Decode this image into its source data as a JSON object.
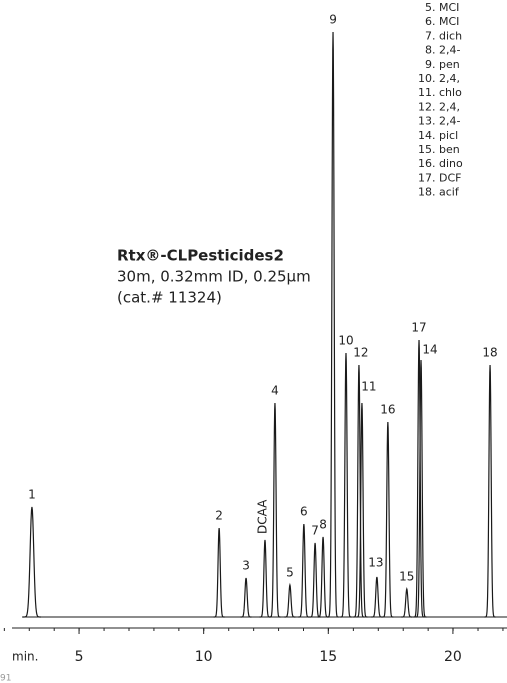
{
  "chart_data": {
    "type": "chromatogram",
    "x_label": "min.",
    "xlim": [
      2.31,
      22.17
    ],
    "xticks": [
      5,
      10,
      15,
      20
    ],
    "ylim": [
      0,
      600
    ],
    "color": "#1a1a1a",
    "categories": [
      "1",
      "2",
      "3",
      "DCAA",
      "4",
      "5",
      "6",
      "7",
      "8",
      "9",
      "10",
      "12",
      "11",
      "13",
      "16",
      "15",
      "17",
      "14",
      "18"
    ],
    "x": [
      3.11,
      10.62,
      11.7,
      12.46,
      12.86,
      13.46,
      14.02,
      14.47,
      14.79,
      15.19,
      15.71,
      16.23,
      16.35,
      16.95,
      17.39,
      18.15,
      18.64,
      18.72,
      21.49
    ],
    "values": [
      110,
      89,
      39,
      77,
      214,
      32,
      93,
      74,
      80,
      585,
      264,
      252,
      214,
      40,
      195,
      28,
      277,
      257,
      252
    ],
    "column": {
      "name": "Rtx®-CLPesticides2",
      "dimensions": "30m, 0.32mm ID, 0.25µm",
      "catalog": "(cat.# 11324)"
    },
    "legend": [
      "5. MCI",
      "6. MCI",
      "7. dich",
      "8. 2,4-",
      "9. pen",
      "10. 2,4,",
      "11. chlo",
      "12. 2,4,",
      "13. 2,4-",
      "14. picl",
      "15. ben",
      "16. dino",
      "17. DCF",
      "18. acif"
    ],
    "footer": "91"
  }
}
